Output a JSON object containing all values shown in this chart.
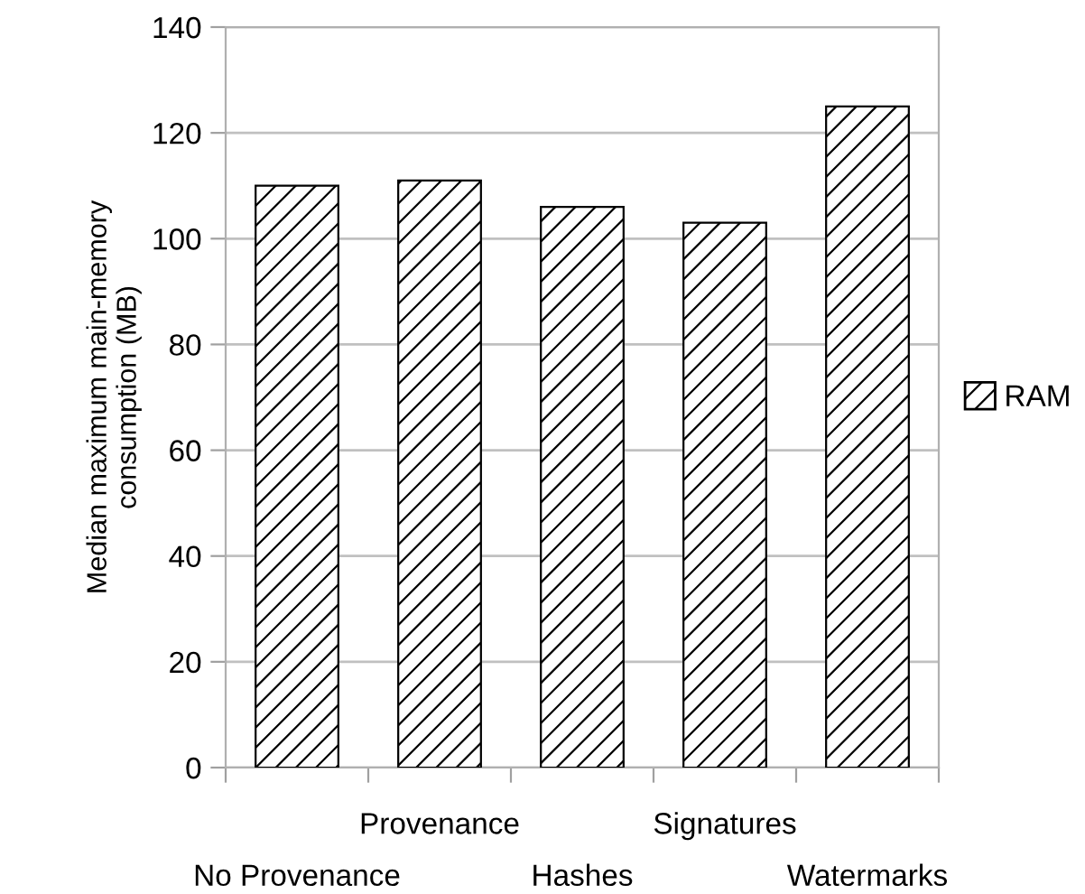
{
  "chart_data": {
    "type": "bar",
    "ylabel": "Median maximum main-memory\nconsumption (MB)",
    "categories": [
      "No Provenance",
      "Provenance",
      "Hashes",
      "Signatures",
      "Watermarks"
    ],
    "series": [
      {
        "name": "RAM",
        "color": "#000000",
        "values": [
          110,
          111,
          106,
          103,
          125
        ]
      }
    ],
    "ylim": [
      0,
      140
    ],
    "yticks": [
      0,
      20,
      40,
      60,
      80,
      100,
      120,
      140
    ],
    "grid": "y",
    "legend": "right"
  }
}
